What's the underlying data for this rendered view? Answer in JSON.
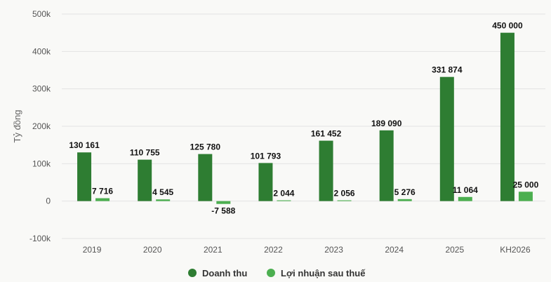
{
  "chart_data": {
    "type": "bar",
    "title": "",
    "ylabel": "Tỷ đồng",
    "xlabel": "",
    "categories": [
      "2019",
      "2020",
      "2021",
      "2022",
      "2023",
      "2024",
      "2025",
      "KH2026"
    ],
    "ylim": [
      -100000,
      500000
    ],
    "yticks": [
      -100000,
      0,
      100000,
      200000,
      300000,
      400000,
      500000
    ],
    "ytick_labels": [
      "-100k",
      "0",
      "100k",
      "200k",
      "300k",
      "400k",
      "500k"
    ],
    "grid": true,
    "legend_position": "bottom",
    "series": [
      {
        "name": "Doanh thu",
        "color": "#2e7d32",
        "values": [
          130161,
          110755,
          125780,
          101793,
          161452,
          189090,
          331874,
          450000
        ],
        "labels": [
          "130 161",
          "110 755",
          "125 780",
          "101 793",
          "161 452",
          "189 090",
          "331 874",
          "450 000"
        ]
      },
      {
        "name": "Lợi nhuận sau thuế",
        "color": "#4caf50",
        "values": [
          7716,
          4545,
          -7588,
          2044,
          2056,
          5276,
          11064,
          25000
        ],
        "labels": [
          "7 716",
          "4 545",
          "-7 588",
          "2 044",
          "2 056",
          "5 276",
          "11 064",
          "25 000"
        ]
      }
    ]
  }
}
